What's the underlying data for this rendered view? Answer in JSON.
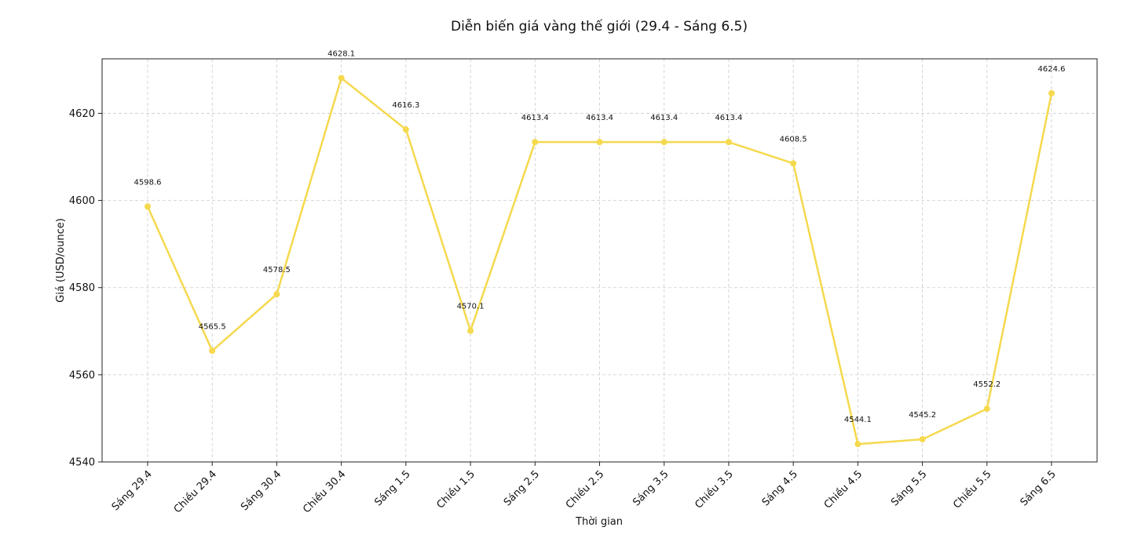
{
  "chart_data": {
    "type": "line",
    "title": "Diễn biến giá vàng thế giới (29.4 - Sáng 6.5)",
    "xlabel": "Thời gian",
    "ylabel": "Giá (USD/ounce)",
    "categories": [
      "Sáng 29.4",
      "Chiều 29.4",
      "Sáng 30.4",
      "Chiều 30.4",
      "Sáng 1.5",
      "Chiều 1.5",
      "Sáng 2.5",
      "Chiều 2.5",
      "Sáng 3.5",
      "Chiều 3.5",
      "Sáng 4.5",
      "Chiều 4.5",
      "Sáng 5.5",
      "Chiều 5.5",
      "Sáng 6.5"
    ],
    "series": [
      {
        "values": [
          4598.6,
          4565.5,
          4578.5,
          4628.1,
          4616.3,
          4570.1,
          4613.4,
          4613.4,
          4613.4,
          4613.4,
          4608.5,
          4544.1,
          4545.2,
          4552.2,
          4624.6
        ],
        "labels": [
          "4598.6",
          "4565.5",
          "4578.5",
          "4628.1",
          "4616.3",
          "4570.1",
          "4613.4",
          "4613.4",
          "4613.4",
          "4613.4",
          "4608.5",
          "4544.1",
          "4545.2",
          "4552.2",
          "4624.6"
        ],
        "color": "#F5D94E"
      }
    ],
    "ylim": [
      4540,
      4632.5
    ],
    "yticks": [
      4540,
      4560,
      4580,
      4600,
      4620
    ],
    "ytick_labels": [
      "4540",
      "4560",
      "4580",
      "4600",
      "4620"
    ],
    "grid": true,
    "legend": false
  }
}
